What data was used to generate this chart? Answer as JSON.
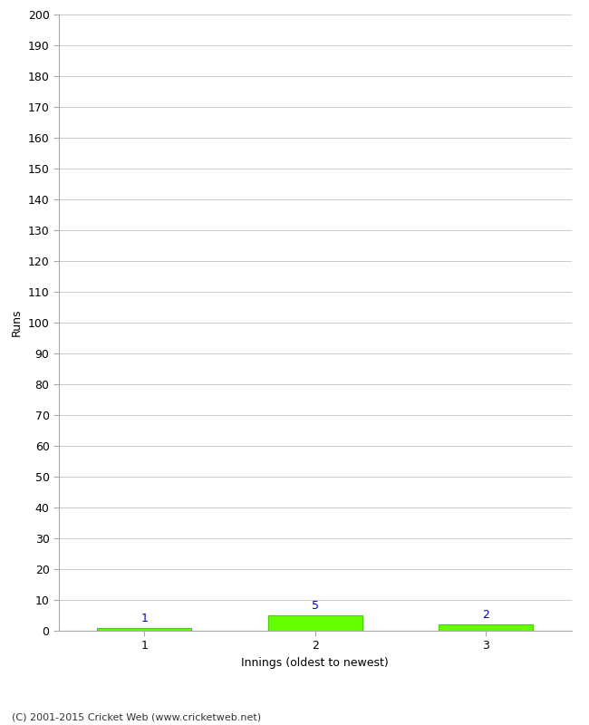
{
  "xlabel": "Innings (oldest to newest)",
  "ylabel": "Runs",
  "categories": [
    1,
    2,
    3
  ],
  "values": [
    1,
    5,
    2
  ],
  "bar_color": "#66ff00",
  "bar_edge_color": "#44cc00",
  "value_labels": [
    1,
    5,
    2
  ],
  "value_label_color": "#0000cc",
  "ylim": [
    0,
    200
  ],
  "yticks": [
    0,
    10,
    20,
    30,
    40,
    50,
    60,
    70,
    80,
    90,
    100,
    110,
    120,
    130,
    140,
    150,
    160,
    170,
    180,
    190,
    200
  ],
  "grid_color": "#cccccc",
  "background_color": "#ffffff",
  "footer_text": "(C) 2001-2015 Cricket Web (www.cricketweb.net)",
  "bar_width": 0.55
}
